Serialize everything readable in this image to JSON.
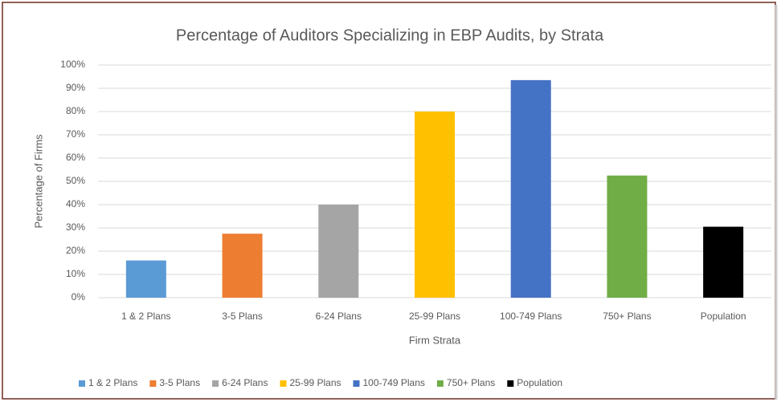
{
  "chart_data": {
    "type": "bar",
    "title": "Percentage of Auditors Specializing in EBP Audits, by Strata",
    "x_label": "Firm Strata",
    "y_label": "Percentage of Firms",
    "categories": [
      "1 & 2 Plans",
      "3-5 Plans",
      "6-24 Plans",
      "25-99 Plans",
      "100-749 Plans",
      "750+ Plans",
      "Population"
    ],
    "values": [
      16,
      27.5,
      40,
      80,
      93.5,
      52.5,
      30.5
    ],
    "colors": [
      "#5b9bd5",
      "#ed7d31",
      "#a5a5a5",
      "#ffc000",
      "#4472c4",
      "#70ad47",
      "#000000"
    ],
    "ylim": [
      0,
      100
    ],
    "yticks": [
      {
        "value": 0,
        "label": "0%"
      },
      {
        "value": 10,
        "label": "10%"
      },
      {
        "value": 20,
        "label": "20%"
      },
      {
        "value": 30,
        "label": "30%"
      },
      {
        "value": 40,
        "label": "40%"
      },
      {
        "value": 50,
        "label": "50%"
      },
      {
        "value": 60,
        "label": "60%"
      },
      {
        "value": 70,
        "label": "70%"
      },
      {
        "value": 80,
        "label": "80%"
      },
      {
        "value": 90,
        "label": "90%"
      },
      {
        "value": 100,
        "label": "100%"
      }
    ],
    "grid": true,
    "legend": "bottom"
  }
}
